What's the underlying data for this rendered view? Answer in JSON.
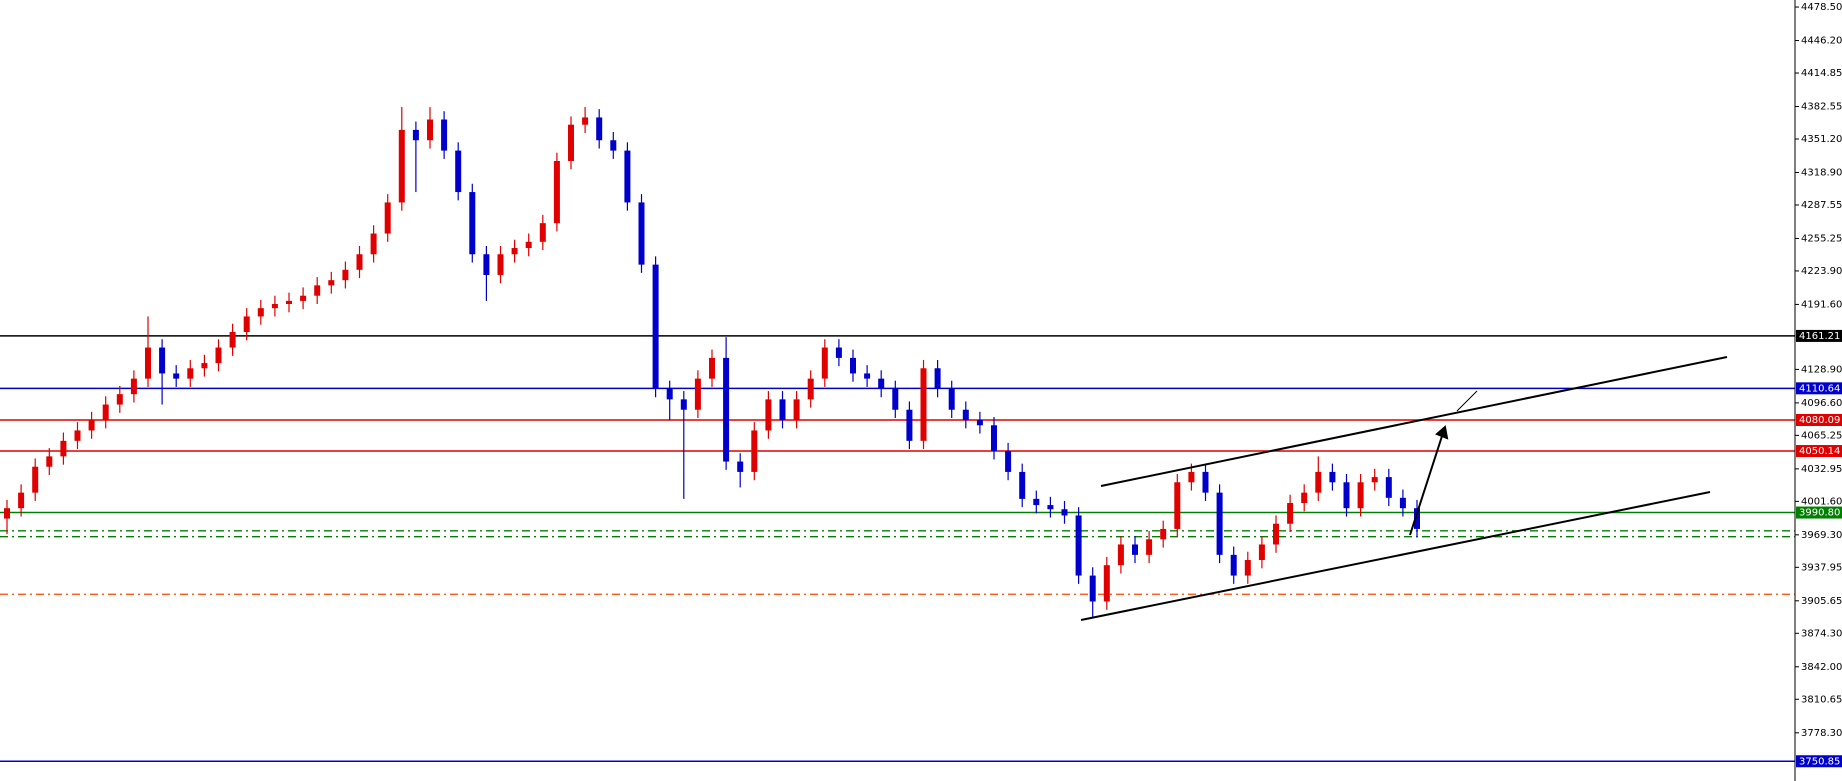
{
  "chart_data": {
    "type": "candlestick",
    "up_color": "#e00000",
    "down_color": "#0000cc",
    "ylim": [
      3731.8,
      4485.3
    ],
    "yticks": [
      {
        "value": 4478.5,
        "label": "4478.50"
      },
      {
        "value": 4446.2,
        "label": "4446.20"
      },
      4414.85,
      4382.55,
      {
        "value": 4351.2,
        "label": "4351.20"
      },
      {
        "value": 4318.9,
        "label": "4318.90"
      },
      4287.55,
      4255.25,
      {
        "value": 4223.9,
        "label": "4223.90"
      },
      {
        "value": 4191.6,
        "label": "4191.60"
      },
      {
        "value": 4128.9,
        "label": "4128.90"
      },
      {
        "value": 4096.6,
        "label": "4096.60"
      },
      4065.25,
      4032.95,
      {
        "value": 4001.6,
        "label": "4001.60"
      },
      {
        "value": 3969.3,
        "label": "3969.30"
      },
      3937.95,
      3905.65,
      {
        "value": 3874.3,
        "label": "3874.30"
      },
      {
        "value": 3842.0,
        "label": "3842.00"
      },
      3810.65,
      {
        "value": 3778.3,
        "label": "3778.30"
      }
    ],
    "open": [
      3985,
      3995,
      4010,
      4035,
      4045,
      4060,
      4070,
      4080,
      4095,
      4105,
      4120,
      4150,
      4125,
      4120,
      4130,
      4135,
      4150,
      4165,
      4180,
      4188,
      4192,
      4195,
      4200,
      4210,
      4215,
      4225,
      4240,
      4260,
      4290,
      4360,
      4350,
      4370,
      4340,
      4300,
      4240,
      4220,
      4240,
      4246,
      4252,
      4270,
      4330,
      4365,
      4372,
      4350,
      4340,
      4290,
      4230,
      4110,
      4100,
      4090,
      4120,
      4140,
      4040,
      4030,
      4070,
      4100,
      4080,
      4100,
      4120,
      4150,
      4140,
      4125,
      4120,
      4110,
      4090,
      4060,
      4130,
      4110,
      4090,
      4080,
      4075,
      4050,
      4030,
      4004,
      3998,
      3994,
      3988,
      3930,
      3905,
      3940,
      3960,
      3950,
      3965,
      3975,
      4020,
      4030,
      4010,
      3950,
      3930,
      3945,
      3960,
      3980,
      4000,
      4010,
      4030,
      4020,
      3995,
      4020,
      4025,
      4005,
      3995
    ],
    "high": [
      4003,
      4018,
      4043,
      4053,
      4068,
      4078,
      4088,
      4103,
      4113,
      4128,
      4180,
      4158,
      4133,
      4138,
      4143,
      4158,
      4173,
      4188,
      4196,
      4200,
      4203,
      4208,
      4218,
      4223,
      4233,
      4248,
      4268,
      4298,
      4382,
      4368,
      4382,
      4378,
      4348,
      4308,
      4248,
      4248,
      4254,
      4260,
      4278,
      4338,
      4373,
      4382,
      4380,
      4358,
      4348,
      4298,
      4238,
      4118,
      4108,
      4128,
      4148,
      4160,
      4048,
      4078,
      4108,
      4108,
      4108,
      4128,
      4158,
      4158,
      4148,
      4133,
      4128,
      4118,
      4098,
      4138,
      4138,
      4118,
      4098,
      4088,
      4083,
      4058,
      4038,
      4012,
      4006,
      4002,
      3996,
      3938,
      3948,
      3968,
      3968,
      3973,
      3983,
      4028,
      4038,
      4038,
      4018,
      3958,
      3953,
      3968,
      3988,
      4008,
      4018,
      4045,
      4038,
      4028,
      4028,
      4033,
      4033,
      4013,
      4003
    ],
    "low": [
      3970,
      3987,
      4002,
      4027,
      4037,
      4052,
      4062,
      4072,
      4087,
      4097,
      4112,
      4095,
      4112,
      4112,
      4122,
      4127,
      4142,
      4157,
      4172,
      4180,
      4184,
      4187,
      4192,
      4202,
      4207,
      4217,
      4232,
      4252,
      4282,
      4300,
      4342,
      4332,
      4292,
      4232,
      4195,
      4212,
      4232,
      4238,
      4244,
      4262,
      4322,
      4357,
      4342,
      4332,
      4282,
      4222,
      4102,
      4080,
      4004,
      4082,
      4112,
      4032,
      4015,
      4022,
      4062,
      4072,
      4072,
      4092,
      4112,
      4132,
      4117,
      4112,
      4102,
      4082,
      4052,
      4052,
      4102,
      4082,
      4072,
      4067,
      4042,
      4022,
      3996,
      3990,
      3986,
      3980,
      3922,
      3890,
      3897,
      3932,
      3942,
      3942,
      3957,
      3967,
      4012,
      4002,
      3942,
      3922,
      3922,
      3937,
      3952,
      3972,
      3992,
      4002,
      4012,
      3987,
      3987,
      4012,
      3997,
      3987,
      3967
    ],
    "close": [
      3995,
      4010,
      4035,
      4045,
      4060,
      4070,
      4080,
      4095,
      4105,
      4120,
      4150,
      4125,
      4120,
      4130,
      4135,
      4150,
      4165,
      4180,
      4188,
      4192,
      4195,
      4200,
      4210,
      4215,
      4225,
      4240,
      4260,
      4290,
      4360,
      4350,
      4370,
      4340,
      4300,
      4240,
      4220,
      4240,
      4246,
      4252,
      4270,
      4330,
      4365,
      4372,
      4350,
      4340,
      4290,
      4230,
      4110,
      4100,
      4090,
      4120,
      4140,
      4040,
      4030,
      4070,
      4100,
      4080,
      4100,
      4120,
      4150,
      4140,
      4125,
      4120,
      4110,
      4090,
      4060,
      4130,
      4110,
      4090,
      4080,
      4075,
      4050,
      4030,
      4004,
      3998,
      3994,
      3988,
      3930,
      3905,
      3940,
      3960,
      3950,
      3965,
      3975,
      4020,
      4030,
      4010,
      3950,
      3930,
      3945,
      3960,
      3980,
      4000,
      4010,
      4030,
      4020,
      3995,
      4020,
      4025,
      4005,
      3995,
      3975
    ],
    "levels": [
      {
        "value": 4161.21,
        "color": "#000000",
        "style": "solid"
      },
      {
        "value": 4110.64,
        "color": "#0000cc",
        "style": "solid"
      },
      {
        "value": 4080.09,
        "color": "#e00000",
        "style": "solid"
      },
      {
        "value": 4050.14,
        "color": "#e00000",
        "style": "solid"
      },
      {
        "value": 3990.8,
        "label": "3990.80",
        "color": "#008000",
        "style": "solid"
      },
      {
        "value": 3750.85,
        "color": "#0000cc",
        "style": "solid"
      },
      {
        "value": 3973.2,
        "color": "#008000",
        "style": "dashdot"
      },
      {
        "value": 3967.5,
        "color": "#008000",
        "style": "dashdot"
      },
      {
        "value": 3912.0,
        "color": "#ff4500",
        "style": "dashdot"
      }
    ]
  }
}
